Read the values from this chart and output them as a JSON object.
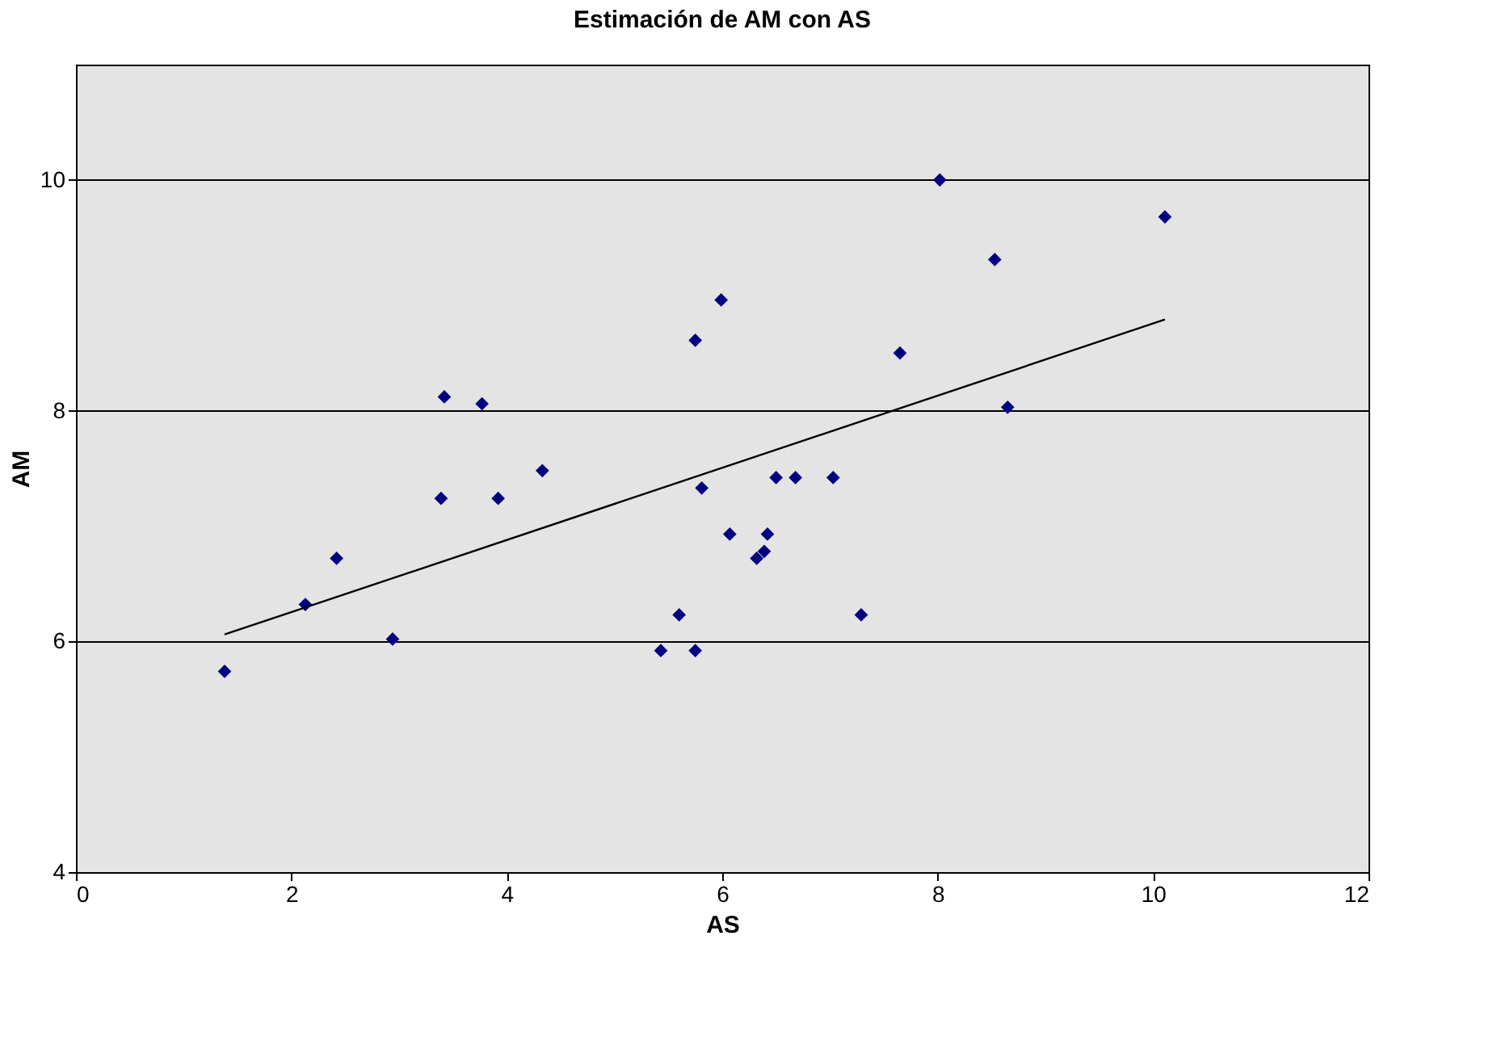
{
  "chart_data": {
    "type": "scatter",
    "title": "Estimación de AM con AS",
    "xlabel": "AS",
    "ylabel": "AM",
    "xlim": [
      0,
      12
    ],
    "xticks": [
      0,
      2,
      4,
      6,
      8,
      10,
      12
    ],
    "ylim": [
      4,
      11
    ],
    "yticks": [
      4,
      6,
      8,
      10
    ],
    "grid": "y",
    "marker": "diamond",
    "series": [
      {
        "color": "#000080",
        "x": [
          1.38,
          2.13,
          2.42,
          2.94,
          3.42,
          3.39,
          3.77,
          3.92,
          4.33,
          5.43,
          5.6,
          5.75,
          5.75,
          5.81,
          5.99,
          6.07,
          6.32,
          6.39,
          6.42,
          6.5,
          6.68,
          7.03,
          7.29,
          7.65,
          8.02,
          8.53,
          8.65,
          10.11
        ],
        "values": [
          5.74,
          6.32,
          6.72,
          6.02,
          8.12,
          7.24,
          8.06,
          7.24,
          7.48,
          5.92,
          6.23,
          5.92,
          8.61,
          7.33,
          8.96,
          6.93,
          6.72,
          6.78,
          6.93,
          7.42,
          7.42,
          7.42,
          6.23,
          8.5,
          10.0,
          9.31,
          8.03,
          9.68
        ]
      },
      {
        "type": "line",
        "color": "#000000",
        "marker": "none",
        "x": [
          1.38,
          10.11
        ],
        "values": [
          6.06,
          8.79
        ]
      }
    ]
  }
}
